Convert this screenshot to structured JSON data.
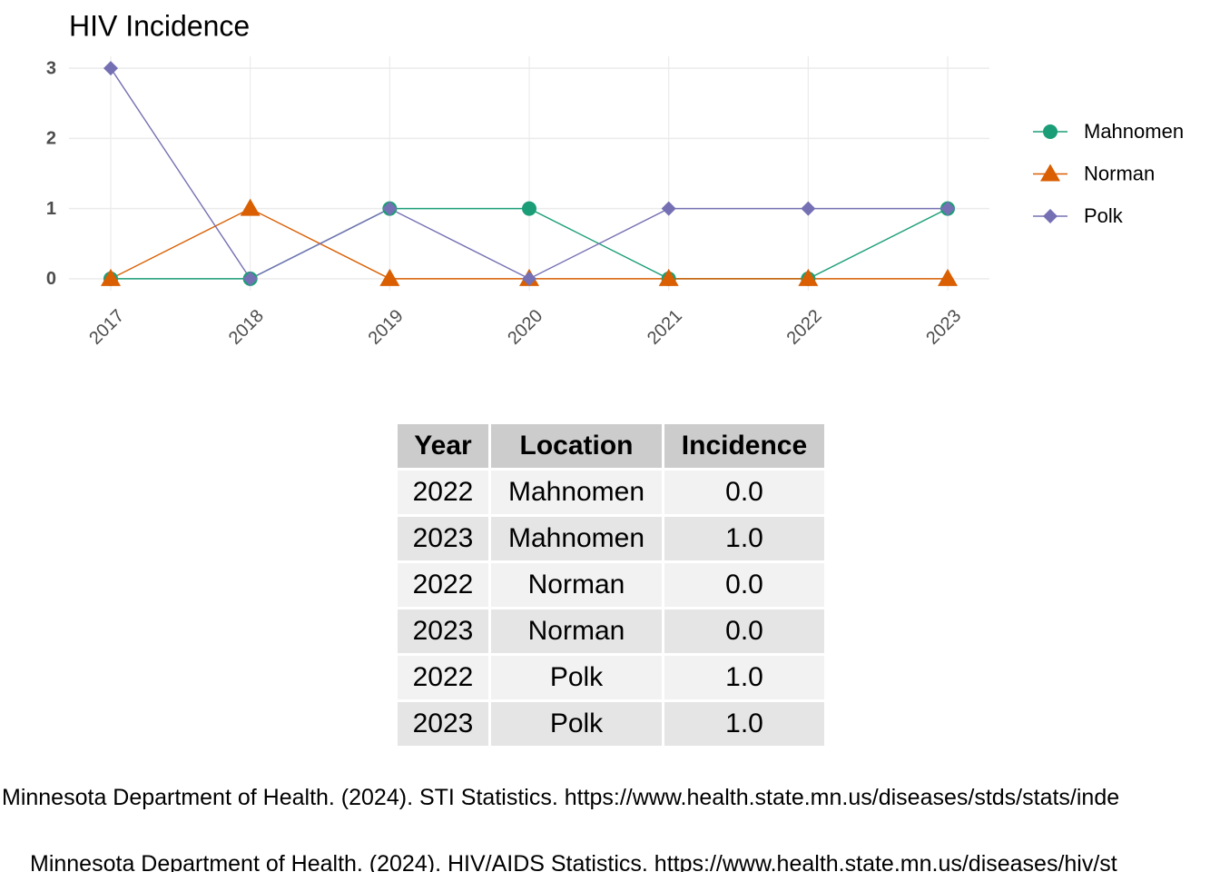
{
  "chart_data": {
    "type": "line",
    "title": "HIV Incidence",
    "categories": [
      "2017",
      "2018",
      "2019",
      "2020",
      "2021",
      "2022",
      "2023"
    ],
    "series": [
      {
        "name": "Mahnomen",
        "color": "#1b9e77",
        "marker": "circle",
        "values": [
          0,
          0,
          1,
          1,
          0,
          0,
          1
        ]
      },
      {
        "name": "Norman",
        "color": "#d95f02",
        "marker": "triangle",
        "values": [
          0,
          1,
          0,
          0,
          0,
          0,
          0
        ]
      },
      {
        "name": "Polk",
        "color": "#7570b3",
        "marker": "diamond",
        "values": [
          3,
          0,
          1,
          0,
          1,
          1,
          1
        ]
      }
    ],
    "ylim": [
      -0.17,
      3.17
    ],
    "yticks": [
      0,
      1,
      2,
      3
    ],
    "grid": true,
    "legend": "right"
  },
  "table": {
    "header": [
      "Year",
      "Location",
      "Incidence"
    ],
    "rows": [
      [
        "2022",
        "Mahnomen",
        "0.0"
      ],
      [
        "2023",
        "Mahnomen",
        "1.0"
      ],
      [
        "2022",
        "Norman",
        "0.0"
      ],
      [
        "2023",
        "Norman",
        "0.0"
      ],
      [
        "2022",
        "Polk",
        "1.0"
      ],
      [
        "2023",
        "Polk",
        "1.0"
      ]
    ]
  },
  "citations": [
    "Minnesota Department of Health. (2024). STI Statistics. https://www.health.state.mn.us/diseases/stds/stats/inde",
    "Minnesota Department of Health. (2024). HIV/AIDS Statistics. https://www.health.state.mn.us/diseases/hiv/st"
  ]
}
